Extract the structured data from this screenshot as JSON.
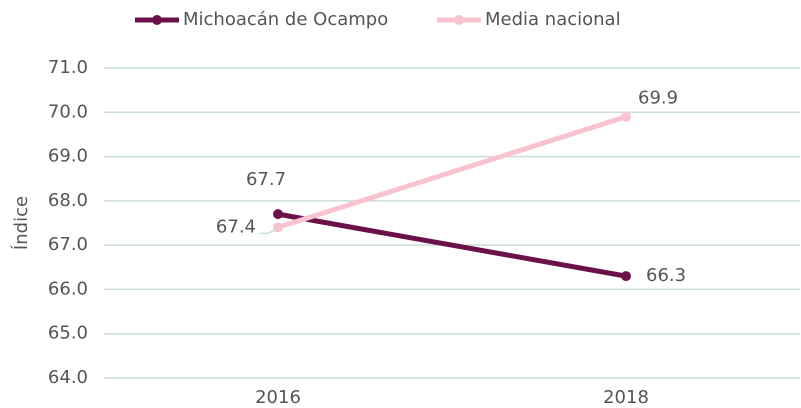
{
  "chart_data": {
    "type": "line",
    "y_label": "Índice",
    "categories": [
      "2016",
      "2018"
    ],
    "series": [
      {
        "name": "Michoacán de Ocampo",
        "color": "#6b1048",
        "values": [
          67.7,
          66.3
        ]
      },
      {
        "name": "Media nacional",
        "color": "#f8c3cf",
        "values": [
          67.4,
          69.9
        ]
      }
    ],
    "ylim": [
      64,
      71
    ],
    "yticks": [
      {
        "value": 64,
        "label": "64.0"
      },
      {
        "value": 65,
        "label": "65.0"
      },
      {
        "value": 66,
        "label": "66.0"
      },
      {
        "value": 67,
        "label": "67.0"
      },
      {
        "value": 68,
        "label": "68.0"
      },
      {
        "value": 69,
        "label": "69.0"
      },
      {
        "value": 70,
        "label": "70.0"
      },
      {
        "value": 71,
        "label": "71.0"
      }
    ],
    "grid": true,
    "legend": "top"
  }
}
